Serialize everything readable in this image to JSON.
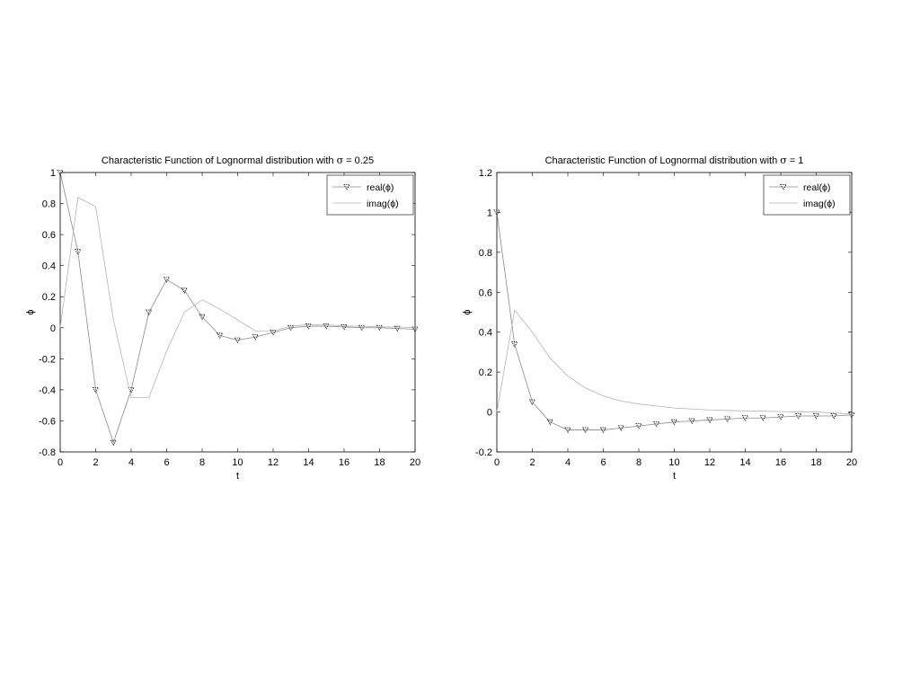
{
  "chart_data": [
    {
      "type": "line",
      "title_prefix": "Characteristic Function of Lognormal distribution with ",
      "title_symbol": "σ",
      "title_suffix": " = 0.25",
      "xlabel": "t",
      "ylabel": "ϕ",
      "xlim": [
        0,
        20
      ],
      "ylim": [
        -0.8,
        1
      ],
      "xticks": [
        0,
        2,
        4,
        6,
        8,
        10,
        12,
        14,
        16,
        18,
        20
      ],
      "yticks": [
        -0.8,
        -0.6,
        -0.4,
        -0.2,
        0,
        0.2,
        0.4,
        0.6,
        0.8,
        1
      ],
      "x": [
        0,
        1,
        2,
        3,
        4,
        5,
        6,
        7,
        8,
        9,
        10,
        11,
        12,
        13,
        14,
        15,
        16,
        17,
        18,
        19,
        20
      ],
      "legend_position": "top-right",
      "series": [
        {
          "name": "real(ϕ)",
          "marker": "triangle-down",
          "values": [
            1.0,
            0.49,
            -0.4,
            -0.74,
            -0.4,
            0.1,
            0.31,
            0.24,
            0.07,
            -0.05,
            -0.08,
            -0.06,
            -0.03,
            0.0,
            0.01,
            0.01,
            0.005,
            0.0,
            0.0,
            -0.005,
            -0.01
          ]
        },
        {
          "name": "imag(ϕ)",
          "marker": "none",
          "values": [
            0.0,
            0.84,
            0.78,
            0.05,
            -0.45,
            -0.45,
            -0.15,
            0.1,
            0.18,
            0.12,
            0.05,
            -0.02,
            -0.02,
            0.01,
            0.02,
            0.02,
            0.01,
            0.01,
            0.005,
            0.005,
            0.0
          ]
        }
      ]
    },
    {
      "type": "line",
      "title_prefix": "Characteristic Function of Lognormal distribution with ",
      "title_symbol": "σ",
      "title_suffix": " = 1",
      "xlabel": "t",
      "ylabel": "ϕ",
      "xlim": [
        0,
        20
      ],
      "ylim": [
        -0.2,
        1.2
      ],
      "xticks": [
        0,
        2,
        4,
        6,
        8,
        10,
        12,
        14,
        16,
        18,
        20
      ],
      "yticks": [
        -0.2,
        0,
        0.2,
        0.4,
        0.6,
        0.8,
        1,
        1.2
      ],
      "x": [
        0,
        1,
        2,
        3,
        4,
        5,
        6,
        7,
        8,
        9,
        10,
        11,
        12,
        13,
        14,
        15,
        16,
        17,
        18,
        19,
        20
      ],
      "legend_position": "top-right",
      "series": [
        {
          "name": "real(ϕ)",
          "marker": "triangle-down",
          "values": [
            1.0,
            0.34,
            0.05,
            -0.05,
            -0.09,
            -0.09,
            -0.09,
            -0.08,
            -0.07,
            -0.06,
            -0.05,
            -0.045,
            -0.04,
            -0.035,
            -0.03,
            -0.03,
            -0.025,
            -0.02,
            -0.02,
            -0.02,
            -0.015
          ]
        },
        {
          "name": "imag(ϕ)",
          "marker": "none",
          "values": [
            0.0,
            0.51,
            0.4,
            0.27,
            0.18,
            0.12,
            0.08,
            0.055,
            0.04,
            0.03,
            0.02,
            0.015,
            0.01,
            0.008,
            0.005,
            0.004,
            0.002,
            0.0,
            0.0,
            -0.005,
            -0.01
          ]
        }
      ]
    }
  ]
}
